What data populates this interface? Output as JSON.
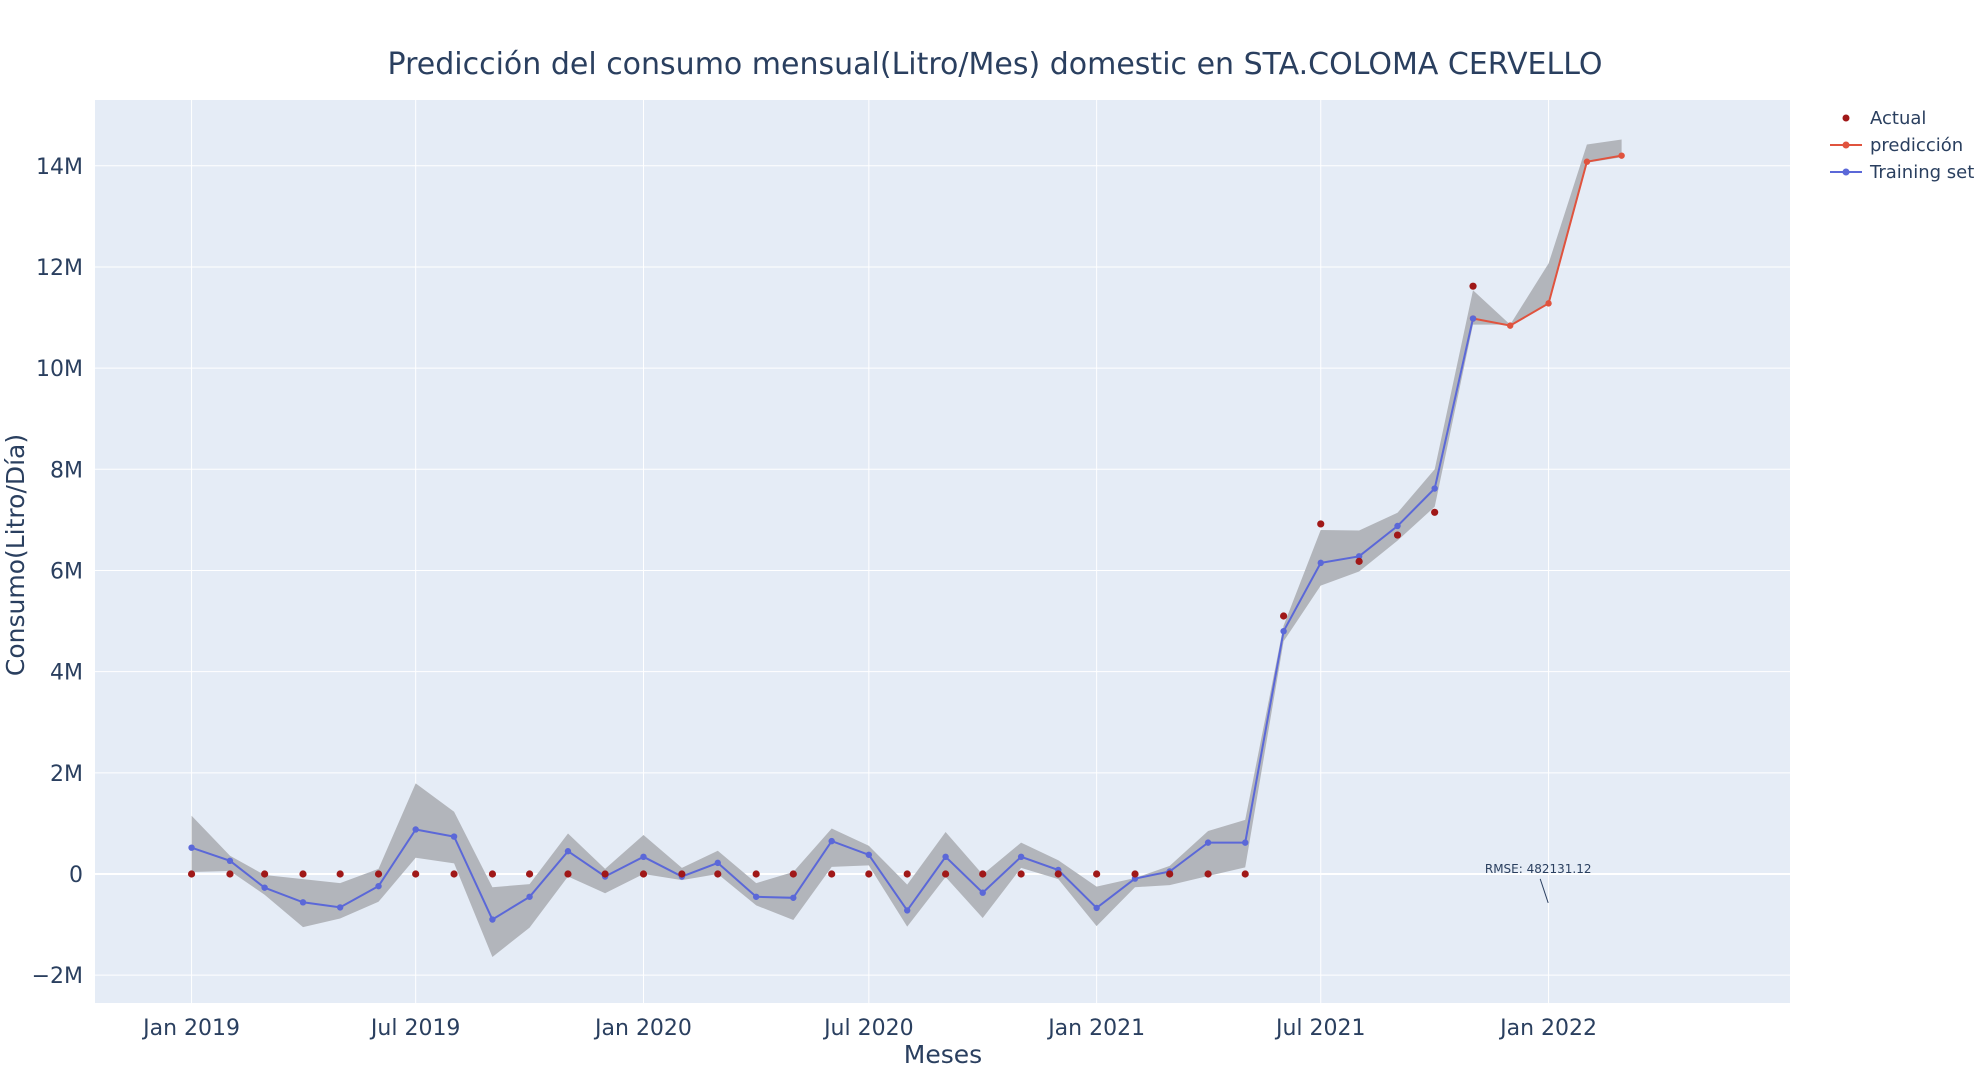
{
  "chart_data": {
    "type": "line",
    "title": "Predicción del consumo mensual(Litro/Mes) domestic en STA.COLOMA CERVELLO",
    "xlabel": "Meses",
    "ylabel": "Consumo(Litro/Día)",
    "x_tick_labels": [
      {
        "date": "2019-01-01",
        "label": "Jan 2019"
      },
      {
        "date": "2019-07-01",
        "label": "Jul 2019"
      },
      {
        "date": "2020-01-01",
        "label": "Jan 2020"
      },
      {
        "date": "2020-07-01",
        "label": "Jul 2020"
      },
      {
        "date": "2021-01-01",
        "label": "Jan 2021"
      },
      {
        "date": "2021-07-01",
        "label": "Jul 2021"
      },
      {
        "date": "2022-01-01",
        "label": "Jan 2022"
      }
    ],
    "y_ticks": [
      {
        "value": -2000000,
        "label": "−2M"
      },
      {
        "value": 0,
        "label": "0"
      },
      {
        "value": 2000000,
        "label": "2M"
      },
      {
        "value": 4000000,
        "label": "4M"
      },
      {
        "value": 6000000,
        "label": "6M"
      },
      {
        "value": 8000000,
        "label": "8M"
      },
      {
        "value": 10000000,
        "label": "10M"
      },
      {
        "value": 12000000,
        "label": "12M"
      },
      {
        "value": 14000000,
        "label": "14M"
      }
    ],
    "xlim": [
      "2018-10-15",
      "2022-07-15"
    ],
    "ylim": [
      -2550000,
      15300000
    ],
    "grid": true,
    "legend_position": "top-right",
    "series": [
      {
        "name": "Actual",
        "mode": "markers",
        "color": "#a01818",
        "x": [
          "2019-01-01",
          "2019-02-01",
          "2019-03-01",
          "2019-04-01",
          "2019-05-01",
          "2019-06-01",
          "2019-07-01",
          "2019-08-01",
          "2019-09-01",
          "2019-10-01",
          "2019-11-01",
          "2019-12-01",
          "2020-01-01",
          "2020-02-01",
          "2020-03-01",
          "2020-04-01",
          "2020-05-01",
          "2020-06-01",
          "2020-07-01",
          "2020-08-01",
          "2020-09-01",
          "2020-10-01",
          "2020-11-01",
          "2020-12-01",
          "2021-01-01",
          "2021-02-01",
          "2021-03-01",
          "2021-04-01",
          "2021-05-01",
          "2021-06-01",
          "2021-07-01",
          "2021-08-01",
          "2021-09-01",
          "2021-10-01",
          "2021-11-01"
        ],
        "y": [
          0,
          0,
          0,
          0,
          0,
          0,
          0,
          0,
          0,
          0,
          0,
          0,
          0,
          0,
          0,
          0,
          0,
          0,
          0,
          0,
          0,
          0,
          0,
          0,
          0,
          0,
          0,
          0,
          0,
          5100000,
          6920000,
          6180000,
          6700000,
          7150000,
          11620000
        ]
      },
      {
        "name": "predicción",
        "mode": "lines+markers",
        "color": "#e0533e",
        "x": [
          "2021-11-01",
          "2021-12-01",
          "2022-01-01",
          "2022-02-01",
          "2022-03-01"
        ],
        "y": [
          10980000,
          10840000,
          11280000,
          14080000,
          14200000
        ]
      },
      {
        "name": "Training set",
        "mode": "lines+markers",
        "color": "#5b68d8",
        "x": [
          "2019-01-01",
          "2019-02-01",
          "2019-03-01",
          "2019-04-01",
          "2019-05-01",
          "2019-06-01",
          "2019-07-01",
          "2019-08-01",
          "2019-09-01",
          "2019-10-01",
          "2019-11-01",
          "2019-12-01",
          "2020-01-01",
          "2020-02-01",
          "2020-03-01",
          "2020-04-01",
          "2020-05-01",
          "2020-06-01",
          "2020-07-01",
          "2020-08-01",
          "2020-09-01",
          "2020-10-01",
          "2020-11-01",
          "2020-12-01",
          "2021-01-01",
          "2021-02-01",
          "2021-03-01",
          "2021-04-01",
          "2021-05-01",
          "2021-06-01",
          "2021-07-01",
          "2021-08-01",
          "2021-09-01",
          "2021-10-01",
          "2021-11-01"
        ],
        "y": [
          520000,
          260000,
          -270000,
          -560000,
          -660000,
          -240000,
          880000,
          740000,
          -900000,
          -450000,
          450000,
          -50000,
          340000,
          -50000,
          220000,
          -450000,
          -470000,
          650000,
          380000,
          -720000,
          340000,
          -370000,
          340000,
          80000,
          -670000,
          -90000,
          50000,
          620000,
          620000,
          4800000,
          6150000,
          6280000,
          6880000,
          7620000,
          10980000
        ]
      }
    ],
    "band": {
      "color": "#b2b5bb",
      "x": [
        "2019-01-01",
        "2019-02-01",
        "2019-03-01",
        "2019-04-01",
        "2019-05-01",
        "2019-06-01",
        "2019-07-01",
        "2019-08-01",
        "2019-09-01",
        "2019-10-01",
        "2019-11-01",
        "2019-12-01",
        "2020-01-01",
        "2020-02-01",
        "2020-03-01",
        "2020-04-01",
        "2020-05-01",
        "2020-06-01",
        "2020-07-01",
        "2020-08-01",
        "2020-09-01",
        "2020-10-01",
        "2020-11-01",
        "2020-12-01",
        "2021-01-01",
        "2021-02-01",
        "2021-03-01",
        "2021-04-01",
        "2021-05-01",
        "2021-06-01",
        "2021-07-01",
        "2021-08-01",
        "2021-09-01",
        "2021-10-01",
        "2021-11-01",
        "2021-12-01",
        "2022-01-01",
        "2022-02-01",
        "2022-03-01"
      ],
      "upper": [
        1150000,
        360000,
        -20000,
        -100000,
        -180000,
        100000,
        1790000,
        1230000,
        -260000,
        -200000,
        800000,
        100000,
        770000,
        120000,
        460000,
        -180000,
        40000,
        900000,
        560000,
        -210000,
        830000,
        -10000,
        620000,
        270000,
        -250000,
        -80000,
        160000,
        850000,
        1070000,
        4910000,
        6800000,
        6790000,
        7140000,
        8000000,
        11540000,
        10860000,
        12070000,
        14420000,
        14520000
      ],
      "lower": [
        40000,
        60000,
        -410000,
        -1050000,
        -880000,
        -550000,
        320000,
        210000,
        -1640000,
        -1060000,
        -50000,
        -380000,
        0,
        -120000,
        0,
        -620000,
        -910000,
        140000,
        170000,
        -1040000,
        -60000,
        -870000,
        120000,
        -100000,
        -1030000,
        -260000,
        -220000,
        -40000,
        130000,
        4600000,
        5700000,
        5980000,
        6590000,
        7260000,
        10860000,
        10860000,
        11260000,
        14060000,
        14170000
      ]
    },
    "annotations": [
      {
        "text": "RMSE: 482131.12",
        "x": "2021-12-01",
        "y": -175000
      }
    ]
  }
}
